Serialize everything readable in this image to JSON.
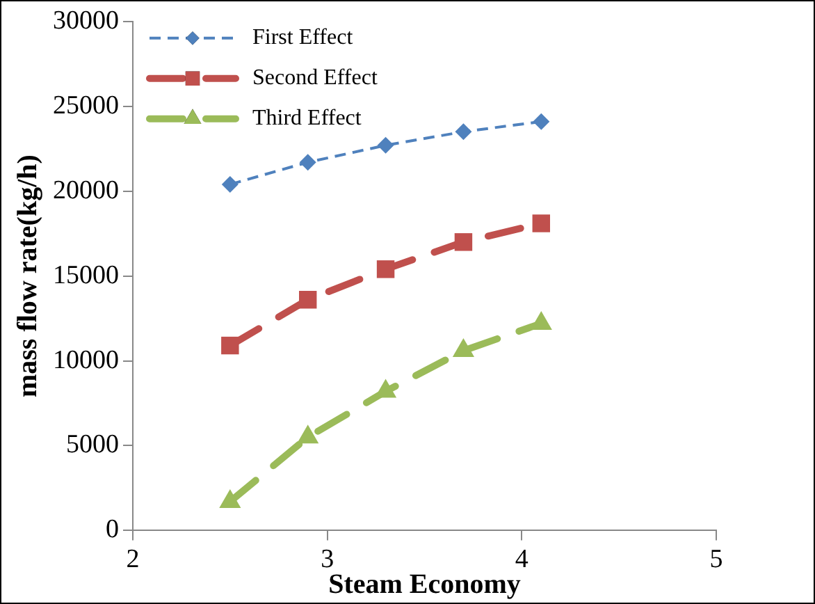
{
  "chart_data": {
    "type": "line",
    "xlabel": "Steam Economy",
    "ylabel": "mass flow rate(kg/h)",
    "xlim": [
      2,
      5
    ],
    "xticks": [
      2,
      3,
      4,
      5
    ],
    "ylim": [
      0,
      30000
    ],
    "yticks": [
      0,
      5000,
      10000,
      15000,
      20000,
      25000,
      30000
    ],
    "grid": false,
    "legend": "top left",
    "line_style": "dashed",
    "x": [
      2.5,
      2.9,
      3.3,
      3.7,
      4.1
    ],
    "series": [
      {
        "name": "First Effect",
        "color": "#4f81bd",
        "marker": "diamond",
        "values": [
          20400,
          21700,
          22700,
          23500,
          24100
        ]
      },
      {
        "name": "Second Effect",
        "color": "#c0504d",
        "marker": "square",
        "values": [
          10900,
          13600,
          15400,
          17000,
          18100
        ]
      },
      {
        "name": "Third Effect",
        "color": "#9bbb59",
        "marker": "triangle",
        "values": [
          1700,
          5500,
          8200,
          10600,
          12200
        ]
      }
    ]
  }
}
